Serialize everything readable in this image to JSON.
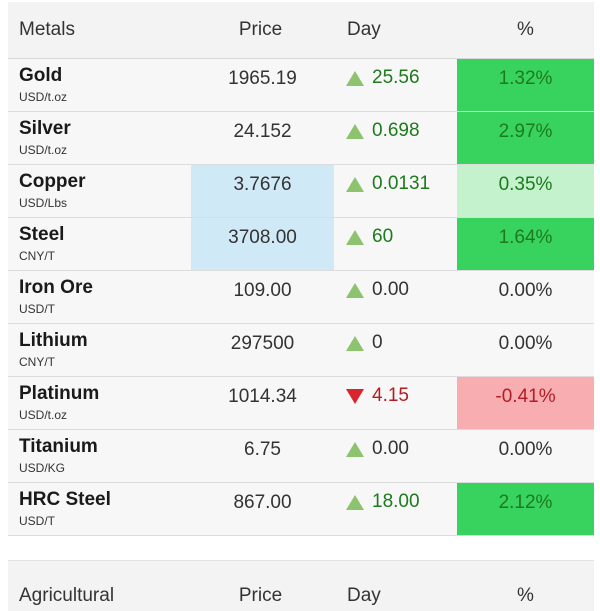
{
  "metals": {
    "header": {
      "col1": "Metals",
      "col2": "Price",
      "col3": "Day",
      "col4": "%"
    },
    "rows": [
      {
        "name": "Gold",
        "unit": "USD/t.oz",
        "price": "1965.19",
        "day": "25.56",
        "direction": "up",
        "pct": "1.32%"
      },
      {
        "name": "Silver",
        "unit": "USD/t.oz",
        "price": "24.152",
        "day": "0.698",
        "direction": "up",
        "pct": "2.97%"
      },
      {
        "name": "Copper",
        "unit": "USD/Lbs",
        "price": "3.7676",
        "day": "0.0131",
        "direction": "up",
        "pct": "0.35%"
      },
      {
        "name": "Steel",
        "unit": "CNY/T",
        "price": "3708.00",
        "day": "60",
        "direction": "up",
        "pct": "1.64%"
      },
      {
        "name": "Iron Ore",
        "unit": "USD/T",
        "price": "109.00",
        "day": "0.00",
        "direction": "up",
        "pct": "0.00%"
      },
      {
        "name": "Lithium",
        "unit": "CNY/T",
        "price": "297500",
        "day": "0",
        "direction": "up",
        "pct": "0.00%"
      },
      {
        "name": "Platinum",
        "unit": "USD/t.oz",
        "price": "1014.34",
        "day": "4.15",
        "direction": "down",
        "pct": "-0.41%"
      },
      {
        "name": "Titanium",
        "unit": "USD/KG",
        "price": "6.75",
        "day": "0.00",
        "direction": "up",
        "pct": "0.00%"
      },
      {
        "name": "HRC Steel",
        "unit": "USD/T",
        "price": "867.00",
        "day": "18.00",
        "direction": "up",
        "pct": "2.12%"
      }
    ]
  },
  "agricultural": {
    "header": {
      "col1": "Agricultural",
      "col2": "Price",
      "col3": "Day",
      "col4": "%"
    }
  },
  "colors": {
    "strong_green": "#38d35e",
    "light_green": "#c3f2cc",
    "light_red": "#f8aeb1",
    "price_highlight": "#cfe9f7",
    "up_arrow": "#8dc26f",
    "down_arrow": "#d9262e"
  }
}
